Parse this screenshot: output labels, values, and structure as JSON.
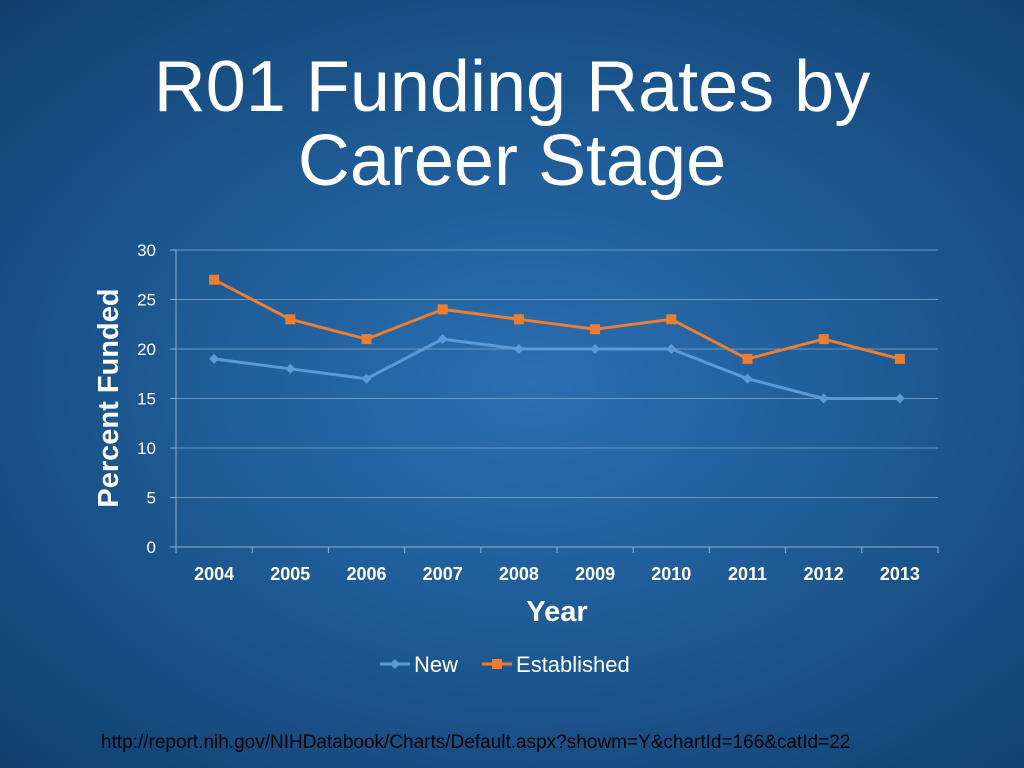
{
  "slide": {
    "title_line1": "R01 Funding Rates by",
    "title_line2": "Career Stage",
    "source_url": "http://report.nih.gov/NIHDatabook/Charts/Default.aspx?showm=Y&chartId=166&catId=22"
  },
  "chart_data": {
    "type": "line",
    "title": "",
    "xlabel": "Year",
    "ylabel": "Percent Funded",
    "categories": [
      "2004",
      "2005",
      "2006",
      "2007",
      "2008",
      "2009",
      "2010",
      "2011",
      "2012",
      "2013"
    ],
    "ylim": [
      0,
      30
    ],
    "yticks": [
      0,
      5,
      10,
      15,
      20,
      25,
      30
    ],
    "grid": true,
    "legend": "bottom",
    "series": [
      {
        "name": "New",
        "color": "#5b9bd5",
        "marker": "diamond",
        "values": [
          19,
          18,
          17,
          21,
          20,
          20,
          20,
          17,
          15,
          15
        ]
      },
      {
        "name": "Established",
        "color": "#ed7d31",
        "marker": "square",
        "values": [
          27,
          23,
          21,
          24,
          23,
          22,
          23,
          19,
          21,
          19
        ]
      }
    ]
  }
}
